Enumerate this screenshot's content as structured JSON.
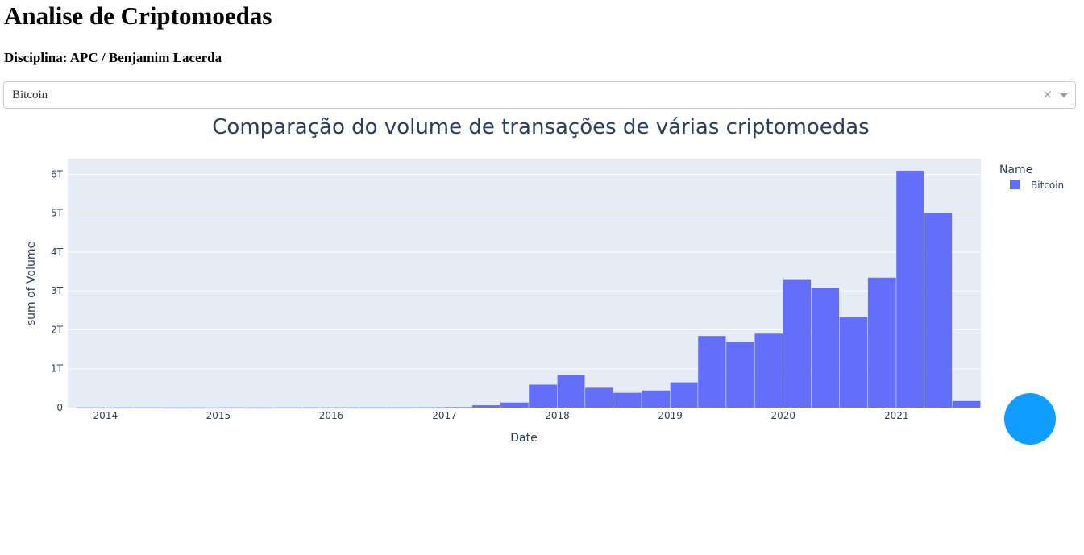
{
  "header": {
    "title": "Analise de Criptomoedas",
    "subtitle": "Disciplina: APC / Benjamim Lacerda"
  },
  "dropdown": {
    "selected": "Bitcoin",
    "clear_symbol": "×"
  },
  "chart_data": {
    "type": "bar",
    "title": "Comparação do volume de transações de várias criptomoedas",
    "xlabel": "Date",
    "ylabel": "sum of Volume",
    "legend_title": "Name",
    "legend_placement": "top-right",
    "grid": true,
    "bar_color": "#636efa",
    "plot_bg": "#e5ecf6",
    "xlim": [
      "2013-09-01",
      "2021-10-01"
    ],
    "ylim": [
      0,
      6.4
    ],
    "x_ticks": [
      "2014",
      "2015",
      "2016",
      "2017",
      "2018",
      "2019",
      "2020",
      "2021"
    ],
    "y_ticks": [
      "0",
      "1T",
      "2T",
      "3T",
      "4T",
      "5T",
      "6T"
    ],
    "y_unit": "T",
    "series": [
      {
        "name": "Bitcoin",
        "bins": [
          {
            "start": "2013-10-01",
            "end": "2014-01-01",
            "value": 0.005
          },
          {
            "start": "2014-01-01",
            "end": "2014-04-01",
            "value": 0.005
          },
          {
            "start": "2014-04-01",
            "end": "2014-07-01",
            "value": 0.005
          },
          {
            "start": "2014-07-01",
            "end": "2014-10-01",
            "value": 0.004
          },
          {
            "start": "2014-10-01",
            "end": "2015-01-01",
            "value": 0.004
          },
          {
            "start": "2015-01-01",
            "end": "2015-04-01",
            "value": 0.005
          },
          {
            "start": "2015-04-01",
            "end": "2015-07-01",
            "value": 0.004
          },
          {
            "start": "2015-07-01",
            "end": "2015-10-01",
            "value": 0.005
          },
          {
            "start": "2015-10-01",
            "end": "2016-01-01",
            "value": 0.006
          },
          {
            "start": "2016-01-01",
            "end": "2016-04-01",
            "value": 0.006
          },
          {
            "start": "2016-04-01",
            "end": "2016-07-01",
            "value": 0.006
          },
          {
            "start": "2016-07-01",
            "end": "2016-10-01",
            "value": 0.006
          },
          {
            "start": "2016-10-01",
            "end": "2017-01-01",
            "value": 0.008
          },
          {
            "start": "2017-01-01",
            "end": "2017-04-01",
            "value": 0.012
          },
          {
            "start": "2017-04-01",
            "end": "2017-07-01",
            "value": 0.06
          },
          {
            "start": "2017-07-01",
            "end": "2017-10-01",
            "value": 0.13
          },
          {
            "start": "2017-10-01",
            "end": "2018-01-01",
            "value": 0.59
          },
          {
            "start": "2018-01-01",
            "end": "2018-04-01",
            "value": 0.84
          },
          {
            "start": "2018-04-01",
            "end": "2018-07-01",
            "value": 0.51
          },
          {
            "start": "2018-07-01",
            "end": "2018-10-01",
            "value": 0.38
          },
          {
            "start": "2018-10-01",
            "end": "2019-01-01",
            "value": 0.44
          },
          {
            "start": "2019-01-01",
            "end": "2019-04-01",
            "value": 0.65
          },
          {
            "start": "2019-04-01",
            "end": "2019-07-01",
            "value": 1.84
          },
          {
            "start": "2019-07-01",
            "end": "2019-10-01",
            "value": 1.69
          },
          {
            "start": "2019-10-01",
            "end": "2020-01-01",
            "value": 1.9
          },
          {
            "start": "2020-01-01",
            "end": "2020-04-01",
            "value": 3.3
          },
          {
            "start": "2020-04-01",
            "end": "2020-07-01",
            "value": 3.08
          },
          {
            "start": "2020-07-01",
            "end": "2020-10-01",
            "value": 2.32
          },
          {
            "start": "2020-10-01",
            "end": "2021-01-01",
            "value": 3.34
          },
          {
            "start": "2021-01-01",
            "end": "2021-04-01",
            "value": 6.09
          },
          {
            "start": "2021-04-01",
            "end": "2021-07-01",
            "value": 5.01
          },
          {
            "start": "2021-07-01",
            "end": "2021-10-01",
            "value": 0.17
          }
        ]
      }
    ]
  },
  "icons": {
    "fab": "code-icon",
    "fab_color": "#119dff"
  }
}
